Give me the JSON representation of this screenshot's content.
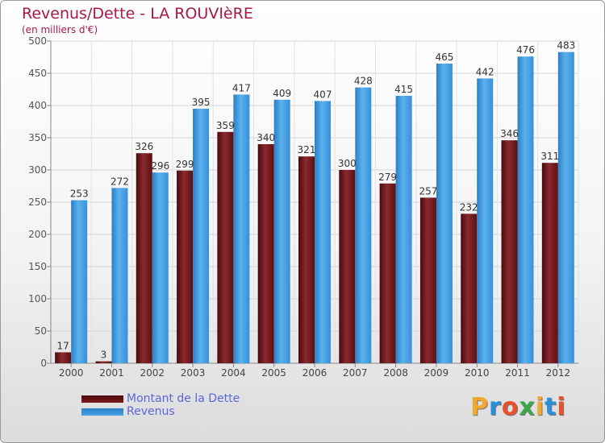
{
  "title": "Revenus/Dette - LA ROUVIèRE",
  "subtitle": "(en milliers d'€)",
  "logo": {
    "letters": [
      "P",
      "r",
      "o",
      "x",
      "i",
      "t",
      "i"
    ],
    "colors": [
      "#f0a830",
      "#2a8fd8",
      "#e8522a",
      "#3aa84a",
      "#f0a830",
      "#2a8fd8",
      "#e8522a"
    ]
  },
  "chart_data": {
    "type": "bar",
    "categories": [
      "2000",
      "2001",
      "2002",
      "2003",
      "2004",
      "2005",
      "2006",
      "2007",
      "2008",
      "2009",
      "2010",
      "2011",
      "2012"
    ],
    "series": [
      {
        "name": "Montant de la Dette",
        "color": "#7a1a1f",
        "values": [
          17,
          3,
          326,
          299,
          359,
          340,
          321,
          300,
          279,
          257,
          232,
          346,
          311
        ]
      },
      {
        "name": "Revenus",
        "color": "#4aa3e2",
        "values": [
          253,
          272,
          296,
          395,
          417,
          409,
          407,
          428,
          415,
          465,
          442,
          476,
          483
        ]
      }
    ],
    "ylim": [
      0,
      500
    ],
    "yticks": [
      0,
      50,
      100,
      150,
      200,
      250,
      300,
      350,
      400,
      450,
      500
    ],
    "grid": true,
    "legend_position": "bottom-left"
  }
}
